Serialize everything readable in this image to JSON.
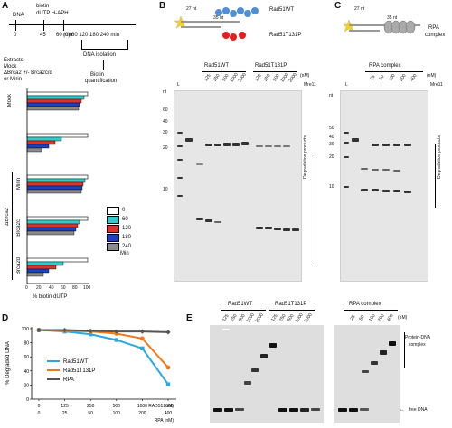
{
  "panel_letters": {
    "A": "A",
    "B": "B",
    "C": "C",
    "D": "D",
    "E": "E"
  },
  "panelA": {
    "timeline": {
      "dna": "DNA",
      "biotin_line1": "biotin",
      "biotin_line2": "dUTP H-APH",
      "times": [
        "0",
        "45",
        "60 min"
      ],
      "chase": "(0) 60 120 180 240 min",
      "dna_isolation": "DNA isolation",
      "biotin_quant_1": "Biotin",
      "biotin_quant_2": "quantification",
      "extracts_lines": [
        "Extracts:",
        "Mock",
        "ΔBrca2 +/- Brca2c/d",
        "or Mirin"
      ]
    },
    "row_labels": {
      "mock": "Mock",
      "mirin": "Mirin",
      "brca2c": "Brca2c",
      "brca2d": "Brca2d",
      "delta": "ΔBrca2"
    },
    "xlabel": "% biotin dUTP",
    "xticks": [
      "0",
      "20",
      "40",
      "60",
      "80",
      "100"
    ],
    "legend": [
      {
        "label": "0",
        "color": "#ffffff"
      },
      {
        "label": "60",
        "color": "#33c9c9"
      },
      {
        "label": "120",
        "color": "#d9332b"
      },
      {
        "label": "180",
        "color": "#1f3fbf"
      },
      {
        "label": "240",
        "color": "#8a8a8a"
      }
    ],
    "legend_unit": "Min"
  },
  "panelB": {
    "top_labels": {
      "len27": "27 nt",
      "len35": "35 nt",
      "wt": "Rad51WT",
      "mut": "Rad51T131P"
    },
    "ladder": [
      "nt",
      "60",
      "40",
      "30",
      "20",
      "10"
    ],
    "lane_header": {
      "L": "L",
      "wt": "Rad51WT",
      "mut": "Rad51T131P",
      "conc": [
        "125",
        "250",
        "500",
        "1000",
        "2000"
      ],
      "nm": "(nM)",
      "mre11": "Mre11"
    },
    "side_label": "Degradation products"
  },
  "panelC": {
    "top_labels": {
      "len27": "27 nt",
      "len35": "35 nt",
      "rpa": "RPA",
      "complex": "complex"
    },
    "ladder": [
      "nt",
      "50",
      "40",
      "30",
      "20",
      "10"
    ],
    "lane_header": {
      "L": "L",
      "title": "RPA complex",
      "conc": [
        "25",
        "50",
        "100",
        "200",
        "400"
      ],
      "nm": "(nM)",
      "mre11": "Mre11"
    },
    "side_label": "Degradation products"
  },
  "chart_data": {
    "type": "line",
    "ylabel": "% Degraded DNA",
    "x": [
      0,
      125,
      250,
      500,
      1000,
      2000
    ],
    "xtick_labels_rad51": [
      "0",
      "125",
      "250",
      "500",
      "1000",
      "2000"
    ],
    "xtick_labels_rpa": [
      "0",
      "25",
      "50",
      "100",
      "200",
      "400"
    ],
    "x_row_labels": [
      "RAD51 (nM)",
      "RPA (nM)"
    ],
    "ylim": [
      0,
      100
    ],
    "yticks": [
      "0",
      "20",
      "40",
      "60",
      "80",
      "100"
    ],
    "series": [
      {
        "name": "Rad51WT",
        "color": "#2aa8e0",
        "values": [
          98,
          96,
          92,
          84,
          72,
          21
        ]
      },
      {
        "name": "Rad51T131P",
        "color": "#f07a1a",
        "values": [
          98,
          97,
          96,
          93,
          86,
          45
        ]
      },
      {
        "name": "RPA",
        "color": "#555555",
        "values": [
          98,
          98,
          97,
          96,
          96,
          95
        ]
      }
    ]
  },
  "panelE": {
    "wt": "Rad51WT",
    "mut": "Rad51T131P",
    "rpa": "RPA complex",
    "conc_left": [
      "125",
      "250",
      "500",
      "1000",
      "2000"
    ],
    "conc_right": [
      "25",
      "50",
      "100",
      "200",
      "400"
    ],
    "nm": "(nM)",
    "protein_dna": [
      "Protein-DNA",
      "complex"
    ],
    "free": "free DNA"
  }
}
